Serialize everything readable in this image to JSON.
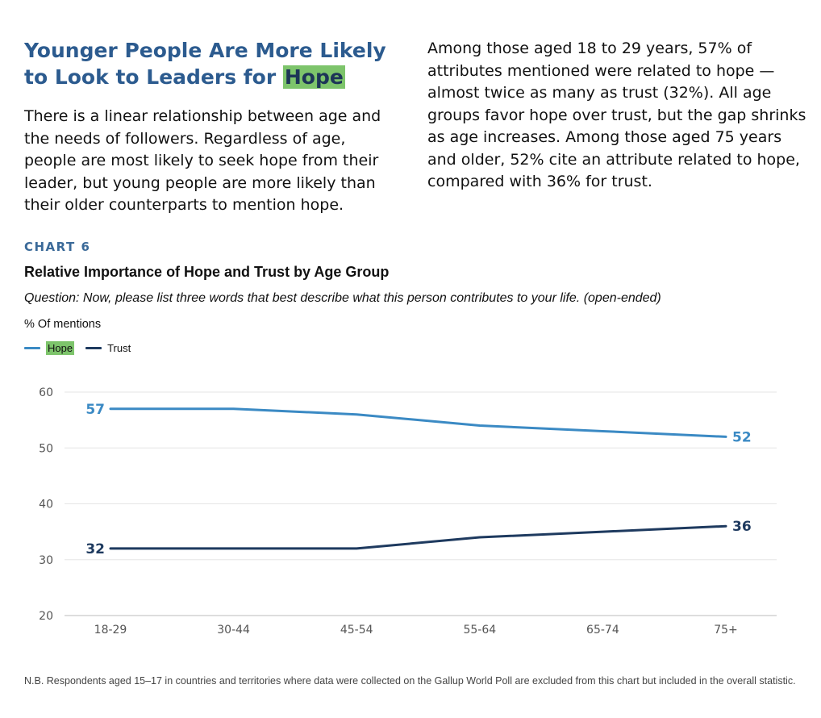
{
  "headline": {
    "line1": "Younger People Are More Likely",
    "line2_prefix": "to Look to Leaders for ",
    "line2_highlight": "Hope"
  },
  "paragraph_left": "There is a linear relationship between age and the needs of followers. Regardless of age, people are most likely to seek hope from their leader, but young people are more likely than their older counterparts to mention hope.",
  "paragraph_right": "Among those aged 18 to 29 years, 57% of attributes mentioned were related to hope — almost twice as many as trust (32%). All age groups favor hope over trust, but the gap shrinks as age increases. Among those aged 75 years and older, 52% cite an attribute related to hope, compared with 36% for trust.",
  "chart_label": "CHART 6",
  "question": "Question: Now, please list three words that best describe what this person contributes to your life. (open-ended)",
  "footnote": "N.B. Respondents aged 15–17 in countries and territories where data were collected on the Gallup World Poll are excluded from this chart but included in the overall statistic.",
  "colors": {
    "hope": "#3b8ac4",
    "trust": "#1e3a5f",
    "highlight": "#7dc46b",
    "grid": "#e6e6e6",
    "axis_text": "#555555"
  },
  "chart_data": {
    "type": "line",
    "title": "Relative Importance of Hope and Trust by Age Group",
    "ylabel": "% Of mentions",
    "xlabel": "",
    "categories": [
      "18-29",
      "30-44",
      "45-54",
      "55-64",
      "65-74",
      "75+"
    ],
    "series": [
      {
        "name": "Hope",
        "values": [
          57,
          57,
          56,
          54,
          53,
          52
        ]
      },
      {
        "name": "Trust",
        "values": [
          32,
          32,
          32,
          34,
          35,
          36
        ]
      }
    ],
    "ylim": [
      20,
      60
    ],
    "yticks": [
      20,
      30,
      40,
      50,
      60
    ],
    "grid": true,
    "legend": "top-left",
    "end_labels": {
      "hope": {
        "first": "57",
        "last": "52"
      },
      "trust": {
        "first": "32",
        "last": "36"
      }
    }
  }
}
